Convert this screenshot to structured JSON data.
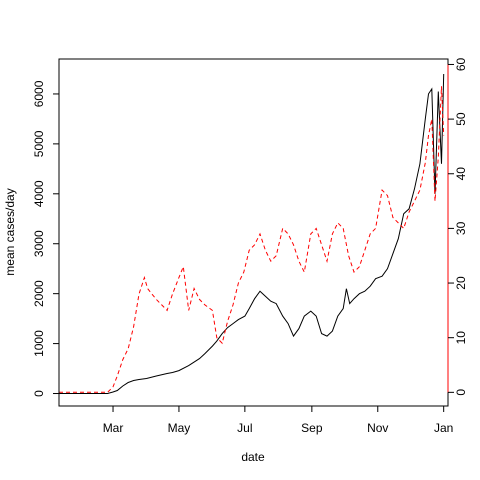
{
  "chart_data": {
    "type": "line",
    "xlabel": "date",
    "ylabel": "mean cases/day",
    "x_ticks": [
      "Mar",
      "May",
      "Jul",
      "Sep",
      "Nov",
      "Jan"
    ],
    "x_tick_dates": [
      "2020-03-01",
      "2020-05-01",
      "2020-07-01",
      "2020-09-01",
      "2020-11-01",
      "2021-01-01"
    ],
    "xlim": [
      "2020-01-11",
      "2021-01-05"
    ],
    "y_ticks": [
      0,
      1000,
      2000,
      3000,
      4000,
      5000,
      6000
    ],
    "ylim": [
      -250,
      6700
    ],
    "y2_ticks": [
      0,
      10,
      20,
      30,
      40,
      50,
      60
    ],
    "y2lim": [
      -2.5,
      61
    ],
    "colors": {
      "primary": "#000000",
      "secondary": "#ff0000"
    },
    "series": [
      {
        "axis": "left",
        "style": "solid",
        "color": "#000000",
        "x": [
          "2020-01-11",
          "2020-02-01",
          "2020-02-25",
          "2020-03-01",
          "2020-03-05",
          "2020-03-10",
          "2020-03-15",
          "2020-03-20",
          "2020-03-25",
          "2020-04-01",
          "2020-04-10",
          "2020-04-20",
          "2020-04-25",
          "2020-05-01",
          "2020-05-10",
          "2020-05-20",
          "2020-05-25",
          "2020-06-01",
          "2020-06-05",
          "2020-06-10",
          "2020-06-15",
          "2020-06-20",
          "2020-06-25",
          "2020-07-01",
          "2020-07-05",
          "2020-07-10",
          "2020-07-15",
          "2020-07-20",
          "2020-07-25",
          "2020-07-30",
          "2020-08-05",
          "2020-08-10",
          "2020-08-15",
          "2020-08-20",
          "2020-08-25",
          "2020-08-31",
          "2020-09-05",
          "2020-09-10",
          "2020-09-15",
          "2020-09-20",
          "2020-09-25",
          "2020-09-30",
          "2020-10-03",
          "2020-10-06",
          "2020-10-10",
          "2020-10-15",
          "2020-10-20",
          "2020-10-25",
          "2020-10-30",
          "2020-11-05",
          "2020-11-10",
          "2020-11-15",
          "2020-11-20",
          "2020-11-25",
          "2020-11-30",
          "2020-12-05",
          "2020-12-10",
          "2020-12-15",
          "2020-12-18",
          "2020-12-21",
          "2020-12-24",
          "2020-12-27",
          "2020-12-30",
          "2021-01-01"
        ],
        "values": [
          0,
          0,
          0,
          30,
          60,
          150,
          220,
          260,
          280,
          300,
          350,
          400,
          420,
          460,
          560,
          700,
          800,
          950,
          1050,
          1200,
          1320,
          1400,
          1480,
          1550,
          1700,
          1900,
          2050,
          1950,
          1850,
          1800,
          1550,
          1400,
          1150,
          1300,
          1550,
          1650,
          1550,
          1200,
          1150,
          1250,
          1550,
          1700,
          2100,
          1800,
          1900,
          2000,
          2050,
          2150,
          2300,
          2350,
          2500,
          2800,
          3100,
          3600,
          3700,
          4100,
          4600,
          5500,
          6000,
          6100,
          4000,
          6050,
          4600,
          6400
        ]
      },
      {
        "axis": "right",
        "style": "dashed",
        "color": "#ff0000",
        "x": [
          "2020-01-11",
          "2020-02-01",
          "2020-02-25",
          "2020-03-01",
          "2020-03-05",
          "2020-03-10",
          "2020-03-15",
          "2020-03-20",
          "2020-03-25",
          "2020-03-30",
          "2020-04-02",
          "2020-04-06",
          "2020-04-10",
          "2020-04-15",
          "2020-04-20",
          "2020-04-25",
          "2020-05-01",
          "2020-05-05",
          "2020-05-10",
          "2020-05-15",
          "2020-05-20",
          "2020-05-25",
          "2020-06-01",
          "2020-06-05",
          "2020-06-10",
          "2020-06-15",
          "2020-06-20",
          "2020-06-25",
          "2020-06-30",
          "2020-07-05",
          "2020-07-10",
          "2020-07-15",
          "2020-07-20",
          "2020-07-25",
          "2020-07-30",
          "2020-08-05",
          "2020-08-10",
          "2020-08-15",
          "2020-08-20",
          "2020-08-25",
          "2020-08-31",
          "2020-09-05",
          "2020-09-10",
          "2020-09-15",
          "2020-09-20",
          "2020-09-25",
          "2020-09-30",
          "2020-10-05",
          "2020-10-10",
          "2020-10-15",
          "2020-10-20",
          "2020-10-25",
          "2020-10-30",
          "2020-11-05",
          "2020-11-10",
          "2020-11-15",
          "2020-11-20",
          "2020-11-25",
          "2020-11-30",
          "2020-12-05",
          "2020-12-10",
          "2020-12-15",
          "2020-12-18",
          "2020-12-21",
          "2020-12-24",
          "2020-12-27",
          "2020-12-30",
          "2021-01-01"
        ],
        "values": [
          0,
          0,
          0,
          1,
          3,
          6,
          8,
          12,
          18,
          21,
          19,
          18,
          17,
          16,
          15,
          18,
          21,
          23,
          15,
          19,
          17,
          16,
          15,
          10,
          9,
          13,
          16,
          20,
          22,
          26,
          27,
          29,
          26,
          24,
          25,
          30,
          29,
          27,
          24,
          22,
          29,
          30,
          27,
          24,
          29,
          31,
          30,
          25,
          22,
          23,
          26,
          29,
          30,
          37,
          36,
          32,
          31,
          30,
          33,
          35,
          37,
          42,
          47,
          50,
          35,
          43,
          56,
          47
        ]
      }
    ]
  }
}
